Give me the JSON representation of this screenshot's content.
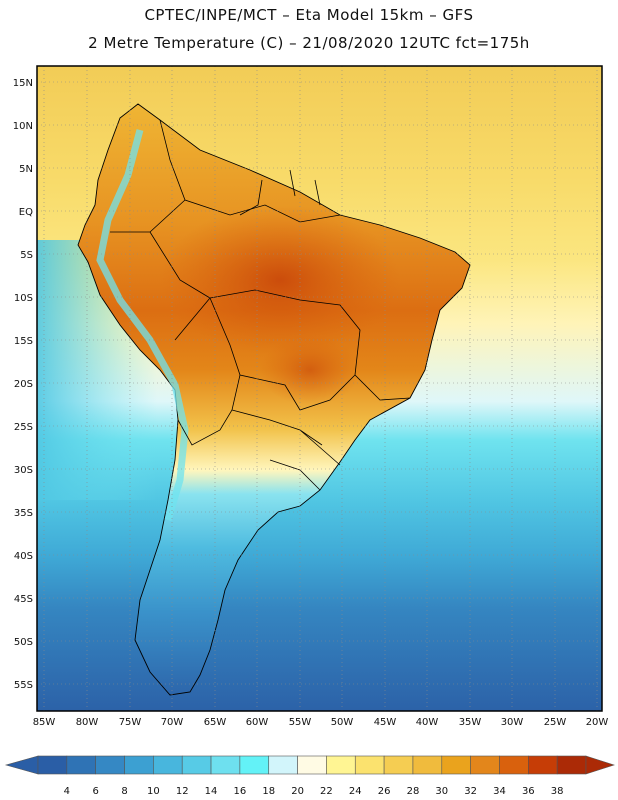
{
  "title": {
    "line1": "CPTEC/INPE/MCT –  Eta Model 15km – GFS",
    "line2": "2 Metre Temperature (C) – 21/08/2020 12UTC fct=175h"
  },
  "map": {
    "lat_labels": [
      "15N",
      "10N",
      "5N",
      "EQ",
      "5S",
      "10S",
      "15S",
      "20S",
      "25S",
      "30S",
      "35S",
      "40S",
      "45S",
      "50S",
      "55S"
    ],
    "lon_labels": [
      "85W",
      "80W",
      "75W",
      "70W",
      "65W",
      "60W",
      "55W",
      "50W",
      "45W",
      "40W",
      "35W",
      "30W",
      "25W",
      "20W"
    ]
  },
  "legend": {
    "ticks": [
      "4",
      "6",
      "8",
      "10",
      "12",
      "14",
      "16",
      "18",
      "20",
      "22",
      "24",
      "26",
      "28",
      "30",
      "32",
      "34",
      "36",
      "38"
    ],
    "colors": [
      "#2a5ea6",
      "#2f73b5",
      "#3588c4",
      "#3ca0d2",
      "#48b6dd",
      "#57cbe6",
      "#6ee0ef",
      "#63f2f7",
      "#d2f5fb",
      "#fffbe4",
      "#fff593",
      "#fbe26e",
      "#f5cd52",
      "#f0bb3d",
      "#eaa31d",
      "#e3861b",
      "#d9610d",
      "#c63d06",
      "#ab2a06"
    ]
  }
}
